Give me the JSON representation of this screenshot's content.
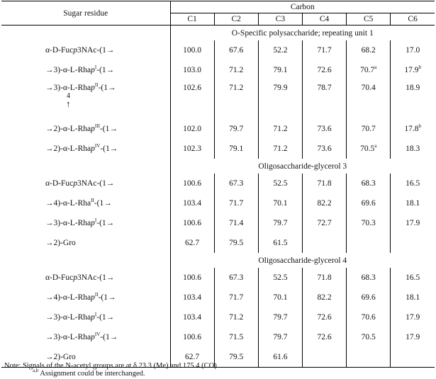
{
  "table": {
    "residue_header": "Sugar residue",
    "carbon_header": "Carbon",
    "carbon_cols": [
      "C1",
      "C2",
      "C3",
      "C4",
      "C5",
      "C6"
    ],
    "sections": [
      {
        "title": "O-Specific polysaccharide; repeating unit 1",
        "rows": [
          {
            "pre": "α-D-Fuc",
            "it": "p",
            "post": "3NAc-(1→",
            "sup": "",
            "tail": "",
            "values": [
              "100.0",
              "67.6",
              "52.2",
              "71.7",
              "68.2",
              "17.0"
            ],
            "sups": [
              "",
              "",
              "",
              "",
              "",
              ""
            ]
          },
          {
            "pre": "→3)-α-L-Rha",
            "it": "p",
            "post": "",
            "sup": "I",
            "tail": "-(1→",
            "values": [
              "103.0",
              "71.2",
              "79.1",
              "72.6",
              "70.7",
              "17.9"
            ],
            "sups": [
              "",
              "",
              "",
              "",
              "a",
              "b"
            ]
          },
          {
            "pre": "→3)-α-L-Rha",
            "it": "p",
            "post": "",
            "sup": "II",
            "tail": "-(1→",
            "values": [
              "102.6",
              "71.2",
              "79.9",
              "78.7",
              "70.4",
              "18.9"
            ],
            "sups": [
              "",
              "",
              "",
              "",
              "",
              ""
            ],
            "branch": "4",
            "arrow": "↑"
          },
          {
            "pre": "→2)-α-L-Rha",
            "it": "p",
            "post": "",
            "sup": "III",
            "tail": "-(1→",
            "values": [
              "102.0",
              "79.7",
              "71.2",
              "73.6",
              "70.7",
              "17.8"
            ],
            "sups": [
              "",
              "",
              "",
              "",
              "",
              "b"
            ]
          },
          {
            "pre": "→2)-α-L-Rha",
            "it": "p",
            "post": "",
            "sup": "IV",
            "tail": "-(1→",
            "values": [
              "102.3",
              "79.1",
              "71.2",
              "73.6",
              "70.5",
              "18.3"
            ],
            "sups": [
              "",
              "",
              "",
              "",
              "a",
              ""
            ]
          }
        ]
      },
      {
        "title": "Oligosaccharide-glycerol 3",
        "rows": [
          {
            "pre": "α-D-Fuc",
            "it": "p",
            "post": "3NAc-(1→",
            "sup": "",
            "tail": "",
            "values": [
              "100.6",
              "67.3",
              "52.5",
              "71.8",
              "68.3",
              "16.5"
            ],
            "sups": [
              "",
              "",
              "",
              "",
              "",
              ""
            ]
          },
          {
            "pre": "→4)-α-L-Rha",
            "it": "",
            "post": "",
            "sup": "II",
            "tail": "-(1→",
            "values": [
              "103.4",
              "71.7",
              "70.1",
              "82.2",
              "69.6",
              "18.1"
            ],
            "sups": [
              "",
              "",
              "",
              "",
              "",
              ""
            ]
          },
          {
            "pre": "→3)-α-L-Rha",
            "it": "p",
            "post": "",
            "sup": "I",
            "tail": "-(1→",
            "values": [
              "100.6",
              "71.4",
              "79.7",
              "72.7",
              "70.3",
              "17.9"
            ],
            "sups": [
              "",
              "",
              "",
              "",
              "",
              ""
            ]
          },
          {
            "pre": "→2)-Gro",
            "it": "",
            "post": "",
            "sup": "",
            "tail": "",
            "values": [
              "62.7",
              "79.5",
              "61.5",
              "",
              "",
              ""
            ],
            "sups": [
              "",
              "",
              "",
              "",
              "",
              ""
            ]
          }
        ]
      },
      {
        "title": "Oligosaccharide-glycerol 4",
        "rows": [
          {
            "pre": "α-D-Fuc",
            "it": "p",
            "post": "3NAc-(1→",
            "sup": "",
            "tail": "",
            "values": [
              "100.6",
              "67.3",
              "52.5",
              "71.8",
              "68.3",
              "16.5"
            ],
            "sups": [
              "",
              "",
              "",
              "",
              "",
              ""
            ]
          },
          {
            "pre": "→4)-α-L-Rha",
            "it": "p",
            "post": "",
            "sup": "II",
            "tail": "-(1→",
            "values": [
              "103.4",
              "71.7",
              "70.1",
              "82.2",
              "69.6",
              "18.1"
            ],
            "sups": [
              "",
              "",
              "",
              "",
              "",
              ""
            ]
          },
          {
            "pre": "→3)-α-L-Rha",
            "it": "p",
            "post": "",
            "sup": "I",
            "tail": "-(1→",
            "values": [
              "103.4",
              "71.2",
              "79.7",
              "72.6",
              "70.6",
              "17.9"
            ],
            "sups": [
              "",
              "",
              "",
              "",
              "",
              ""
            ]
          },
          {
            "pre": "→3)-α-L-Rha",
            "it": "p",
            "post": "",
            "sup": "IV",
            "tail": "-(1→",
            "values": [
              "100.6",
              "71.5",
              "79.7",
              "72.6",
              "70.5",
              "17.9"
            ],
            "sups": [
              "",
              "",
              "",
              "",
              "",
              ""
            ]
          },
          {
            "pre": "→2)-Gro",
            "it": "",
            "post": "",
            "sup": "",
            "tail": "",
            "values": [
              "62.7",
              "79.5",
              "61.6",
              "",
              "",
              ""
            ],
            "sups": [
              "",
              "",
              "",
              "",
              "",
              ""
            ]
          }
        ]
      }
    ]
  },
  "notes": {
    "line1": "Note: Signals of the N-acetyl groups are at δ 23.3 (Me) and 175.4 (CO).",
    "line2_sup": "a,b",
    "line2": " Assignment could be interchanged."
  }
}
